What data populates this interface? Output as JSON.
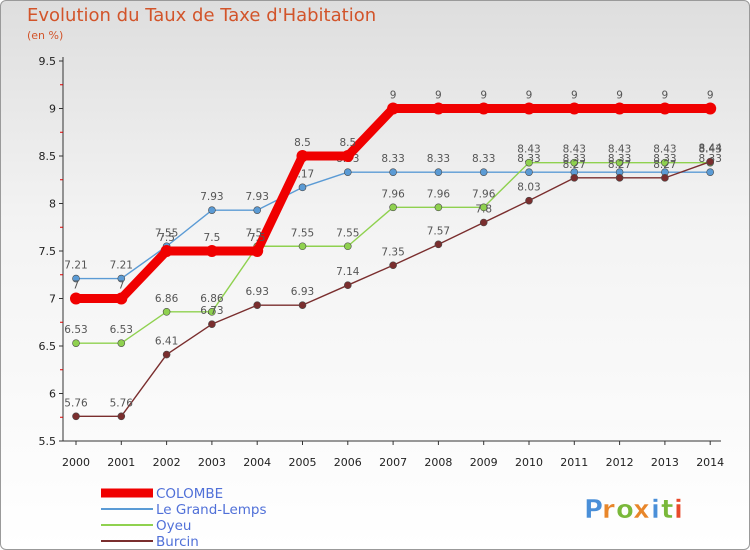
{
  "header": {
    "title": "Evolution du Taux de Taxe d'Habitation",
    "unit": "(en %)"
  },
  "brand": {
    "letters": [
      "P",
      "r",
      "o",
      "x",
      "i",
      "t",
      "i"
    ],
    "colors": [
      "#4a8fd8",
      "#e8862a",
      "#7ab83a",
      "#e8862a",
      "#4a8fd8",
      "#7ab83a",
      "#e84a2a"
    ]
  },
  "chart_data": {
    "type": "line",
    "title": "Evolution du Taux de Taxe d'Habitation",
    "ylabel": "(en %)",
    "xlabel": "",
    "x": [
      "2000",
      "2001",
      "2002",
      "2003",
      "2004",
      "2005",
      "2006",
      "2007",
      "2008",
      "2009",
      "2010",
      "2011",
      "2012",
      "2013",
      "2014"
    ],
    "ylim": [
      5.5,
      9.5
    ],
    "yticks": [
      "5.5",
      "6",
      "6.5",
      "7",
      "7.5",
      "8",
      "8.5",
      "9",
      "9.5"
    ],
    "grid": false,
    "legend_position": "bottom-left",
    "series": [
      {
        "name": "COLOMBE",
        "color": "#f00000",
        "values": [
          7,
          7,
          7.5,
          7.5,
          7.5,
          8.5,
          8.5,
          9,
          9,
          9,
          9,
          9,
          9,
          9,
          9
        ],
        "labels": [
          "7",
          "7",
          "7.5",
          "7.5",
          "7.5",
          "8.5",
          "8.5",
          "9",
          "9",
          "9",
          "9",
          "9",
          "9",
          "9",
          "9"
        ]
      },
      {
        "name": "Le Grand-Lemps",
        "color": "#5b9bd5",
        "values": [
          7.21,
          7.21,
          7.55,
          7.93,
          7.93,
          8.17,
          8.33,
          8.33,
          8.33,
          8.33,
          8.33,
          8.33,
          8.33,
          8.33,
          8.33
        ],
        "labels": [
          "7.21",
          "7.21",
          "7.55",
          "7.93",
          "7.93",
          "8.17",
          "8.33",
          "8.33",
          "8.33",
          "8.33",
          "8.33",
          "8.33",
          "8.33",
          "8.33",
          "8.33"
        ]
      },
      {
        "name": "Oyeu",
        "color": "#8fd14f",
        "values": [
          6.53,
          6.53,
          6.86,
          6.86,
          7.55,
          7.55,
          7.55,
          7.96,
          7.96,
          7.96,
          8.43,
          8.43,
          8.43,
          8.43,
          8.43
        ],
        "labels": [
          "6.53",
          "6.53",
          "6.86",
          "6.86",
          "7.55",
          "7.55",
          "7.55",
          "7.96",
          "7.96",
          "7.96",
          "8.43",
          "8.43",
          "8.43",
          "8.43",
          "8.43"
        ]
      },
      {
        "name": "Burcin",
        "color": "#7a2e2e",
        "values": [
          5.76,
          5.76,
          6.41,
          6.73,
          6.93,
          6.93,
          7.14,
          7.35,
          7.57,
          7.8,
          8.03,
          8.27,
          8.27,
          8.27,
          8.44
        ],
        "labels": [
          "5.76",
          "5.76",
          "6.41",
          "6.73",
          "6.93",
          "6.93",
          "7.14",
          "7.35",
          "7.57",
          "7.8",
          "8.03",
          "8.27",
          "8.27",
          "8.27",
          "8.44"
        ]
      }
    ]
  }
}
